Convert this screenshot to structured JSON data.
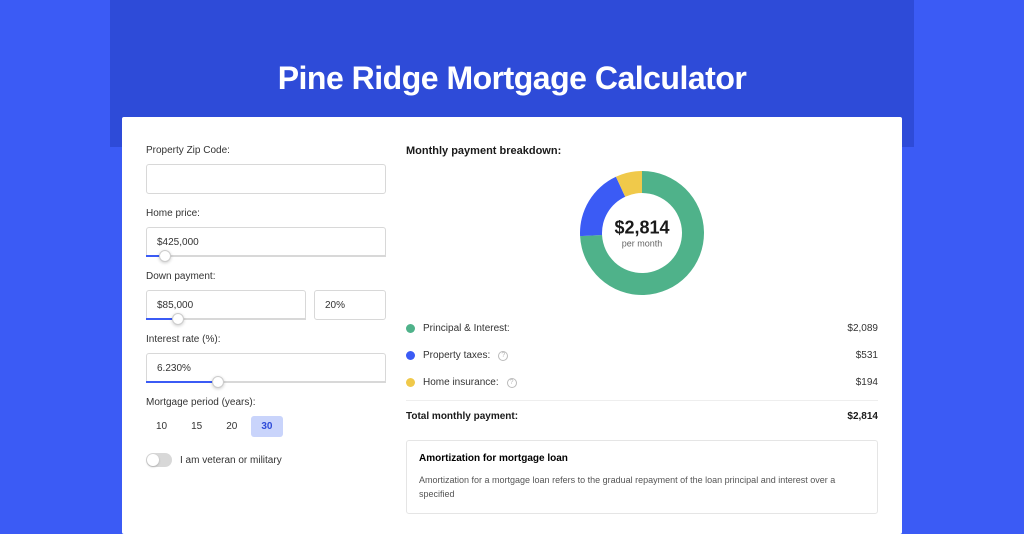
{
  "page": {
    "title": "Pine Ridge Mortgage Calculator",
    "background_color": "#3b5bf5",
    "band_color": "#2e4bd8"
  },
  "form": {
    "zip": {
      "label": "Property Zip Code:",
      "value": ""
    },
    "price": {
      "label": "Home price:",
      "value": "$425,000",
      "slider_pct": 8
    },
    "down": {
      "label": "Down payment:",
      "value": "$85,000",
      "pct": "20%",
      "slider_pct": 20
    },
    "rate": {
      "label": "Interest rate (%):",
      "value": "6.230%",
      "slider_pct": 30
    },
    "period": {
      "label": "Mortgage period (years):",
      "options": [
        "10",
        "15",
        "20",
        "30"
      ],
      "selected": "30"
    },
    "veteran": {
      "label": "I am veteran or military",
      "checked": false
    }
  },
  "breakdown": {
    "title": "Monthly payment breakdown:",
    "donut": {
      "amount": "$2,814",
      "sub": "per month",
      "inner_radius": 40,
      "outer_radius": 62,
      "segments": [
        {
          "color": "#4fb28a",
          "pct": 74.2
        },
        {
          "color": "#3b5bf5",
          "pct": 18.9
        },
        {
          "color": "#f0c94a",
          "pct": 6.9
        }
      ]
    },
    "items": [
      {
        "label": "Principal & Interest:",
        "value": "$2,089",
        "color": "#4fb28a",
        "info": false
      },
      {
        "label": "Property taxes:",
        "value": "$531",
        "color": "#3b5bf5",
        "info": true
      },
      {
        "label": "Home insurance:",
        "value": "$194",
        "color": "#f0c94a",
        "info": true
      }
    ],
    "total": {
      "label": "Total monthly payment:",
      "value": "$2,814"
    }
  },
  "amortization": {
    "title": "Amortization for mortgage loan",
    "text": "Amortization for a mortgage loan refers to the gradual repayment of the loan principal and interest over a specified"
  }
}
